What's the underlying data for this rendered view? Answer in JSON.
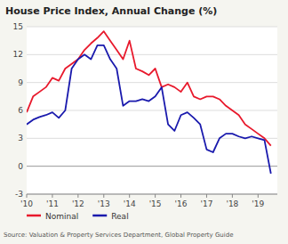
{
  "chart_data": {
    "type": "line",
    "title": "House Price Index, Annual Change (%)",
    "source": "Source: Valuation & Property Services Department, Global Property Guide",
    "x": [
      2010.0,
      2010.25,
      2010.5,
      2010.75,
      2011.0,
      2011.25,
      2011.5,
      2011.75,
      2012.0,
      2012.25,
      2012.5,
      2012.75,
      2013.0,
      2013.25,
      2013.5,
      2013.75,
      2014.0,
      2014.25,
      2014.5,
      2014.75,
      2015.0,
      2015.25,
      2015.5,
      2015.75,
      2016.0,
      2016.25,
      2016.5,
      2016.75,
      2017.0,
      2017.25,
      2017.5,
      2017.75,
      2018.0,
      2018.25,
      2018.5,
      2018.75,
      2019.0,
      2019.25,
      2019.5
    ],
    "series": [
      {
        "name": "Nominal",
        "color": "#e8192c",
        "values": [
          5.8,
          7.5,
          8.0,
          8.5,
          9.5,
          9.2,
          10.5,
          11.0,
          11.5,
          12.5,
          13.2,
          13.8,
          14.5,
          13.5,
          12.5,
          11.5,
          13.5,
          10.5,
          10.2,
          9.8,
          10.5,
          8.5,
          8.8,
          8.5,
          8.0,
          9.0,
          7.5,
          7.2,
          7.5,
          7.5,
          7.2,
          6.5,
          6.0,
          5.5,
          4.5,
          4.0,
          3.5,
          3.0,
          2.2
        ]
      },
      {
        "name": "Real",
        "color": "#1a1aad",
        "values": [
          4.5,
          5.0,
          5.3,
          5.5,
          5.8,
          5.2,
          6.0,
          10.5,
          11.5,
          12.0,
          11.5,
          13.0,
          13.0,
          11.5,
          10.5,
          6.5,
          7.0,
          7.0,
          7.2,
          7.0,
          7.5,
          8.5,
          4.5,
          3.8,
          5.5,
          5.8,
          5.2,
          4.5,
          1.8,
          1.5,
          3.0,
          3.5,
          3.5,
          3.2,
          3.0,
          3.2,
          3.0,
          2.8,
          -0.8
        ]
      }
    ],
    "xlim": [
      2010.0,
      2019.75
    ],
    "ylim": [
      -3,
      15
    ],
    "xticks": [
      {
        "value": 2010,
        "label": "'10"
      },
      {
        "value": 2011,
        "label": "'11"
      },
      {
        "value": 2012,
        "label": "'12"
      },
      {
        "value": 2013,
        "label": "'13"
      },
      {
        "value": 2014,
        "label": "'14"
      },
      {
        "value": 2015,
        "label": "'15"
      },
      {
        "value": 2016,
        "label": "'16"
      },
      {
        "value": 2017,
        "label": "'17"
      },
      {
        "value": 2018,
        "label": "'18"
      },
      {
        "value": 2019,
        "label": "'19"
      }
    ],
    "yticks": [
      -3,
      0,
      3,
      6,
      9,
      12,
      15
    ],
    "grid": true,
    "legend": "bottom"
  }
}
